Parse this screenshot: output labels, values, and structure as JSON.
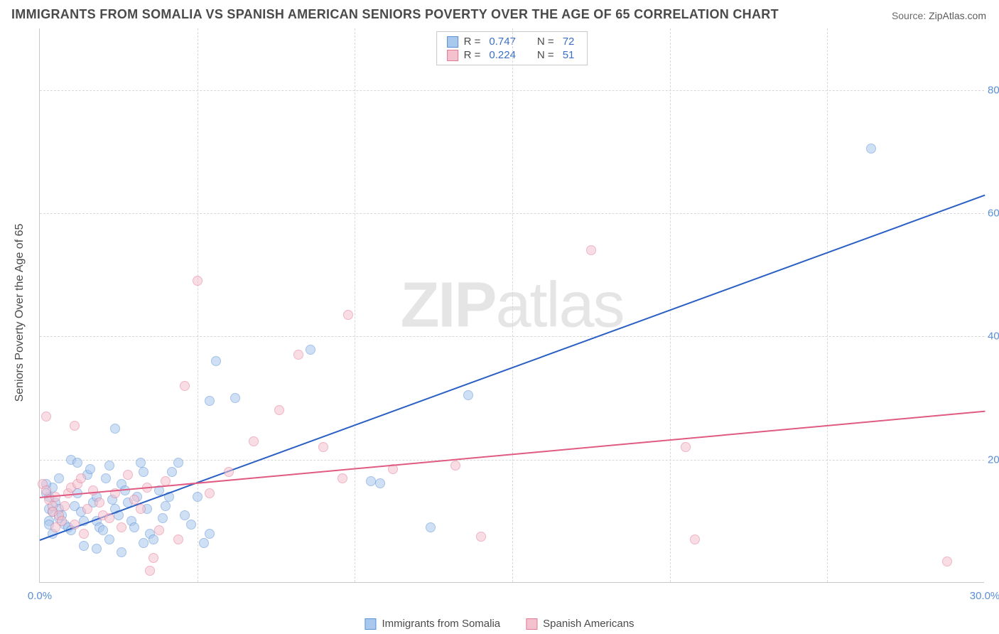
{
  "title": "IMMIGRANTS FROM SOMALIA VS SPANISH AMERICAN SENIORS POVERTY OVER THE AGE OF 65 CORRELATION CHART",
  "source_label": "Source:",
  "source_value": "ZipAtlas.com",
  "ylabel": "Seniors Poverty Over the Age of 65",
  "watermark_bold": "ZIP",
  "watermark_light": "atlas",
  "chart": {
    "type": "scatter",
    "xlim": [
      0,
      30
    ],
    "ylim": [
      0,
      90
    ],
    "xticks": [
      {
        "v": 0,
        "label": "0.0%"
      },
      {
        "v": 30,
        "label": "30.0%"
      }
    ],
    "xgrid": [
      5,
      10,
      15,
      20,
      25
    ],
    "yticks": [
      {
        "v": 20,
        "label": "20.0%"
      },
      {
        "v": 40,
        "label": "40.0%"
      },
      {
        "v": 60,
        "label": "60.0%"
      },
      {
        "v": 80,
        "label": "80.0%"
      }
    ],
    "background_color": "#ffffff",
    "grid_color": "#d8d8d8",
    "axis_color": "#c8c8c8",
    "tick_label_color": "#5b8fd6",
    "marker_radius": 7,
    "marker_opacity": 0.55,
    "series": [
      {
        "name": "Immigrants from Somalia",
        "fill": "#a9c8ed",
        "stroke": "#5b8fd6",
        "line_color": "#2a5fc4",
        "r_label": "R  =",
        "r_value": "0.747",
        "n_label": "N  =",
        "n_value": "72",
        "trend": {
          "x1": 0,
          "y1": 7,
          "x2": 30,
          "y2": 63
        },
        "points": [
          [
            26.4,
            70.5
          ],
          [
            8.6,
            37.8
          ],
          [
            5.6,
            36.0
          ],
          [
            13.6,
            30.5
          ],
          [
            10.5,
            16.5
          ],
          [
            10.8,
            16.2
          ],
          [
            12.4,
            9.0
          ],
          [
            6.2,
            30.0
          ],
          [
            5.4,
            29.5
          ],
          [
            2.4,
            25.0
          ],
          [
            1.0,
            20.0
          ],
          [
            0.4,
            15.5
          ],
          [
            0.3,
            14.0
          ],
          [
            0.5,
            13.0
          ],
          [
            0.6,
            12.0
          ],
          [
            0.6,
            10.5
          ],
          [
            0.7,
            11.0
          ],
          [
            0.8,
            9.5
          ],
          [
            0.9,
            9.0
          ],
          [
            1.0,
            8.5
          ],
          [
            1.1,
            12.5
          ],
          [
            1.2,
            14.5
          ],
          [
            1.3,
            11.5
          ],
          [
            1.4,
            10.0
          ],
          [
            1.5,
            17.5
          ],
          [
            1.6,
            18.5
          ],
          [
            1.7,
            13.0
          ],
          [
            1.8,
            14.0
          ],
          [
            1.8,
            10.0
          ],
          [
            1.9,
            9.0
          ],
          [
            2.0,
            8.5
          ],
          [
            2.1,
            17.0
          ],
          [
            2.2,
            19.0
          ],
          [
            2.3,
            13.5
          ],
          [
            2.4,
            12.0
          ],
          [
            2.5,
            11.0
          ],
          [
            2.6,
            16.0
          ],
          [
            2.7,
            15.0
          ],
          [
            2.8,
            13.0
          ],
          [
            2.9,
            10.0
          ],
          [
            3.0,
            9.0
          ],
          [
            3.1,
            14.0
          ],
          [
            3.2,
            19.5
          ],
          [
            3.3,
            18.0
          ],
          [
            3.4,
            12.0
          ],
          [
            3.5,
            8.0
          ],
          [
            3.6,
            7.0
          ],
          [
            3.8,
            15.0
          ],
          [
            4.0,
            12.5
          ],
          [
            4.1,
            14.0
          ],
          [
            4.2,
            18.0
          ],
          [
            4.4,
            19.5
          ],
          [
            4.6,
            11.0
          ],
          [
            4.8,
            9.5
          ],
          [
            5.0,
            14.0
          ],
          [
            5.2,
            6.5
          ],
          [
            5.4,
            8.0
          ],
          [
            1.4,
            6.0
          ],
          [
            1.8,
            5.5
          ],
          [
            2.2,
            7.0
          ],
          [
            3.3,
            6.5
          ],
          [
            0.2,
            16.0
          ],
          [
            0.2,
            14.5
          ],
          [
            0.3,
            12.0
          ],
          [
            0.3,
            10.0
          ],
          [
            0.3,
            9.5
          ],
          [
            0.4,
            8.0
          ],
          [
            2.6,
            5.0
          ],
          [
            3.9,
            10.5
          ],
          [
            0.6,
            17.0
          ],
          [
            1.2,
            19.5
          ],
          [
            0.4,
            11.5
          ]
        ]
      },
      {
        "name": "Spanish Americans",
        "fill": "#f4c2cf",
        "stroke": "#e27a96",
        "line_color": "#e05a82",
        "r_label": "R  =",
        "r_value": "0.224",
        "n_label": "N  =",
        "n_value": "51",
        "trend": {
          "x1": 0,
          "y1": 14,
          "x2": 30,
          "y2": 28
        },
        "points": [
          [
            17.5,
            54.0
          ],
          [
            5.0,
            49.0
          ],
          [
            9.8,
            43.5
          ],
          [
            8.2,
            37.0
          ],
          [
            4.6,
            32.0
          ],
          [
            7.6,
            28.0
          ],
          [
            6.8,
            23.0
          ],
          [
            9.0,
            22.0
          ],
          [
            9.6,
            17.0
          ],
          [
            11.2,
            18.5
          ],
          [
            13.2,
            19.0
          ],
          [
            14.0,
            7.5
          ],
          [
            20.5,
            22.0
          ],
          [
            20.8,
            7.0
          ],
          [
            28.8,
            3.5
          ],
          [
            0.1,
            16.0
          ],
          [
            0.2,
            15.0
          ],
          [
            0.3,
            13.5
          ],
          [
            0.4,
            12.5
          ],
          [
            0.4,
            11.5
          ],
          [
            0.5,
            14.0
          ],
          [
            0.5,
            9.0
          ],
          [
            0.6,
            11.0
          ],
          [
            0.7,
            10.0
          ],
          [
            0.8,
            12.5
          ],
          [
            0.9,
            14.5
          ],
          [
            1.0,
            15.5
          ],
          [
            1.1,
            9.5
          ],
          [
            1.2,
            16.0
          ],
          [
            1.3,
            17.0
          ],
          [
            1.4,
            8.0
          ],
          [
            1.5,
            12.0
          ],
          [
            1.7,
            15.0
          ],
          [
            1.9,
            13.0
          ],
          [
            2.0,
            11.0
          ],
          [
            2.2,
            10.5
          ],
          [
            2.4,
            14.5
          ],
          [
            2.6,
            9.0
          ],
          [
            2.8,
            17.5
          ],
          [
            3.0,
            13.5
          ],
          [
            3.2,
            12.0
          ],
          [
            3.4,
            15.5
          ],
          [
            3.6,
            4.0
          ],
          [
            3.8,
            8.5
          ],
          [
            4.0,
            16.5
          ],
          [
            4.4,
            7.0
          ],
          [
            5.4,
            14.5
          ],
          [
            6.0,
            18.0
          ],
          [
            0.2,
            27.0
          ],
          [
            3.5,
            2.0
          ],
          [
            1.1,
            25.5
          ]
        ]
      }
    ]
  }
}
